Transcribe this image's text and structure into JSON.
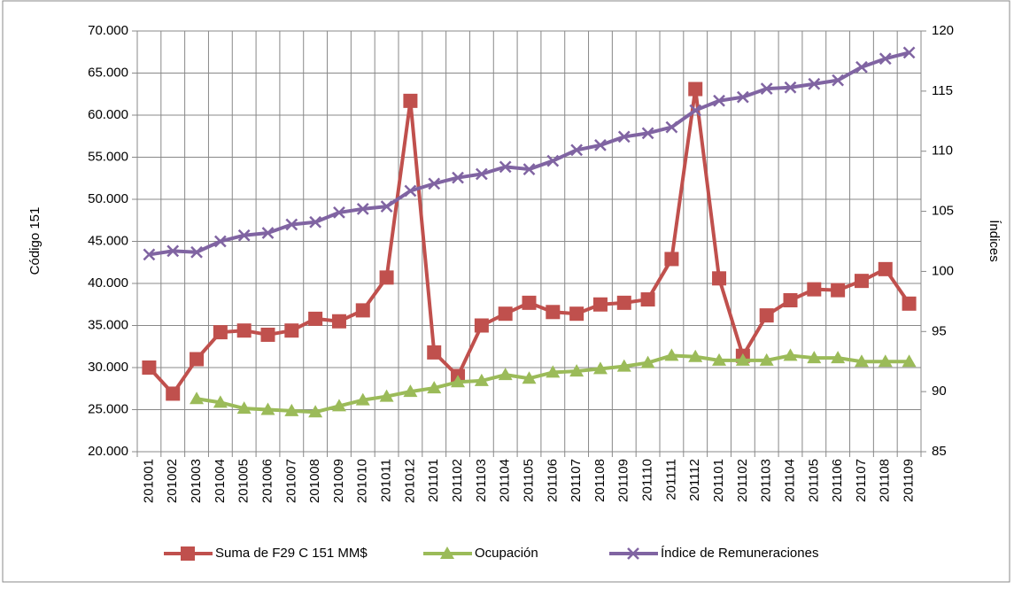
{
  "chart_data": {
    "type": "line",
    "categories": [
      "201001",
      "201002",
      "201003",
      "201004",
      "201005",
      "201006",
      "201007",
      "201008",
      "201009",
      "201010",
      "201011",
      "201012",
      "201101",
      "201102",
      "201103",
      "201104",
      "201105",
      "201106",
      "201107",
      "201108",
      "201109",
      "201110",
      "201111",
      "201112",
      "201101",
      "201102",
      "201103",
      "201104",
      "201105",
      "201106",
      "201107",
      "201108",
      "201109"
    ],
    "series": [
      {
        "name": "Suma de F29 C 151 MM$",
        "color": "#c0504d",
        "marker": "square",
        "values": [
          30000,
          26900,
          31000,
          34200,
          34400,
          33900,
          34400,
          35800,
          35500,
          36800,
          40700,
          61700,
          31800,
          29000,
          35000,
          36400,
          37700,
          36600,
          36400,
          37500,
          37700,
          38100,
          42900,
          63100,
          40600,
          31400,
          36200,
          38000,
          39300,
          39200,
          40300,
          41700,
          37600
        ]
      },
      {
        "name": "Ocupación",
        "color": "#9bbb59",
        "marker": "triangle",
        "axis": "y2",
        "values": [
          null,
          null,
          89.4,
          89.1,
          88.6,
          88.5,
          88.4,
          88.3,
          88.8,
          89.3,
          89.6,
          90.0,
          90.3,
          90.8,
          90.9,
          91.4,
          91.1,
          91.6,
          91.7,
          91.9,
          92.1,
          92.4,
          93.0,
          92.9,
          92.6,
          92.6,
          92.6,
          93.0,
          92.8,
          92.8,
          92.5,
          92.5,
          92.5
        ]
      },
      {
        "name": "Índice de Remuneraciones",
        "color": "#8064a2",
        "marker": "x",
        "axis": "y2",
        "values": [
          101.4,
          101.7,
          101.6,
          102.5,
          103.0,
          103.2,
          103.9,
          104.1,
          104.9,
          105.2,
          105.4,
          106.7,
          107.3,
          107.8,
          108.1,
          108.7,
          108.5,
          109.2,
          110.1,
          110.5,
          111.2,
          111.5,
          112.0,
          113.4,
          114.2,
          114.5,
          115.2,
          115.3,
          115.6,
          115.9,
          117.0,
          117.7,
          118.2
        ]
      }
    ],
    "y_label": "Código 151",
    "y2_label": "Índices",
    "ylim": [
      20000,
      70000
    ],
    "yticks": [
      {
        "value": 20000,
        "label": "20.000"
      },
      {
        "value": 25000,
        "label": "25.000"
      },
      {
        "value": 30000,
        "label": "30.000"
      },
      {
        "value": 35000,
        "label": "35.000"
      },
      {
        "value": 40000,
        "label": "40.000"
      },
      {
        "value": 45000,
        "label": "45.000"
      },
      {
        "value": 50000,
        "label": "50.000"
      },
      {
        "value": 55000,
        "label": "55.000"
      },
      {
        "value": 60000,
        "label": "60.000"
      },
      {
        "value": 65000,
        "label": "65.000"
      },
      {
        "value": 70000,
        "label": "70.000"
      }
    ],
    "y2lim": [
      85,
      120
    ],
    "y2ticks": [
      85,
      90,
      95,
      100,
      105,
      110,
      115,
      120
    ],
    "grid": true,
    "legend": "bottom"
  }
}
